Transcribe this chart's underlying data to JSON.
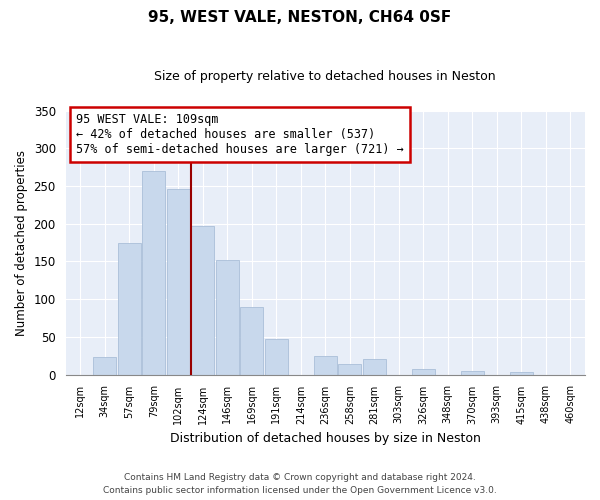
{
  "title": "95, WEST VALE, NESTON, CH64 0SF",
  "subtitle": "Size of property relative to detached houses in Neston",
  "xlabel": "Distribution of detached houses by size in Neston",
  "ylabel": "Number of detached properties",
  "bar_labels": [
    "12sqm",
    "34sqm",
    "57sqm",
    "79sqm",
    "102sqm",
    "124sqm",
    "146sqm",
    "169sqm",
    "191sqm",
    "214sqm",
    "236sqm",
    "258sqm",
    "281sqm",
    "303sqm",
    "326sqm",
    "348sqm",
    "370sqm",
    "393sqm",
    "415sqm",
    "438sqm",
    "460sqm"
  ],
  "bar_values": [
    0,
    23,
    175,
    270,
    246,
    197,
    152,
    89,
    47,
    0,
    25,
    14,
    21,
    0,
    8,
    0,
    5,
    0,
    4,
    0,
    0
  ],
  "bar_color": "#c8d8ec",
  "bar_edge_color": "#aabfd8",
  "vline_index": 5,
  "vline_color": "#990000",
  "ylim": [
    0,
    350
  ],
  "yticks": [
    0,
    50,
    100,
    150,
    200,
    250,
    300,
    350
  ],
  "annotation_title": "95 WEST VALE: 109sqm",
  "annotation_line1": "← 42% of detached houses are smaller (537)",
  "annotation_line2": "57% of semi-detached houses are larger (721) →",
  "annotation_box_color": "#ffffff",
  "annotation_box_edge": "#cc0000",
  "footer_line1": "Contains HM Land Registry data © Crown copyright and database right 2024.",
  "footer_line2": "Contains public sector information licensed under the Open Government Licence v3.0.",
  "background_color": "#ffffff",
  "plot_bg_color": "#e8eef8",
  "grid_color": "#ffffff"
}
